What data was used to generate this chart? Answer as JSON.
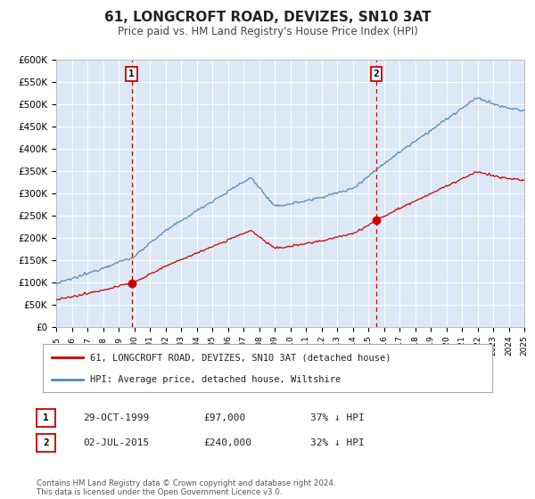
{
  "title": "61, LONGCROFT ROAD, DEVIZES, SN10 3AT",
  "subtitle": "Price paid vs. HM Land Registry's House Price Index (HPI)",
  "title_fontsize": 11,
  "subtitle_fontsize": 8.5,
  "background_color": "#ffffff",
  "plot_bg_color": "#dce8f5",
  "grid_color": "#ffffff",
  "ylim": [
    0,
    600000
  ],
  "yticks": [
    0,
    50000,
    100000,
    150000,
    200000,
    250000,
    300000,
    350000,
    400000,
    450000,
    500000,
    550000,
    600000
  ],
  "ytick_labels": [
    "£0",
    "£50K",
    "£100K",
    "£150K",
    "£200K",
    "£250K",
    "£300K",
    "£350K",
    "£400K",
    "£450K",
    "£500K",
    "£550K",
    "£600K"
  ],
  "red_line_color": "#cc0000",
  "blue_line_color": "#5588bb",
  "marker_color": "#cc0000",
  "vline_color": "#cc0000",
  "sale1_year": 1999.83,
  "sale1_price": 97000,
  "sale1_label": "1",
  "sale2_year": 2015.5,
  "sale2_price": 240000,
  "sale2_label": "2",
  "legend_red_label": "61, LONGCROFT ROAD, DEVIZES, SN10 3AT (detached house)",
  "legend_blue_label": "HPI: Average price, detached house, Wiltshire",
  "annotation1_date": "29-OCT-1999",
  "annotation1_price": "£97,000",
  "annotation1_hpi": "37% ↓ HPI",
  "annotation2_date": "02-JUL-2015",
  "annotation2_price": "£240,000",
  "annotation2_hpi": "32% ↓ HPI",
  "footer": "Contains HM Land Registry data © Crown copyright and database right 2024.\nThis data is licensed under the Open Government Licence v3.0.",
  "xmin": 1995,
  "xmax": 2025,
  "label_box_color": "#cc0000"
}
